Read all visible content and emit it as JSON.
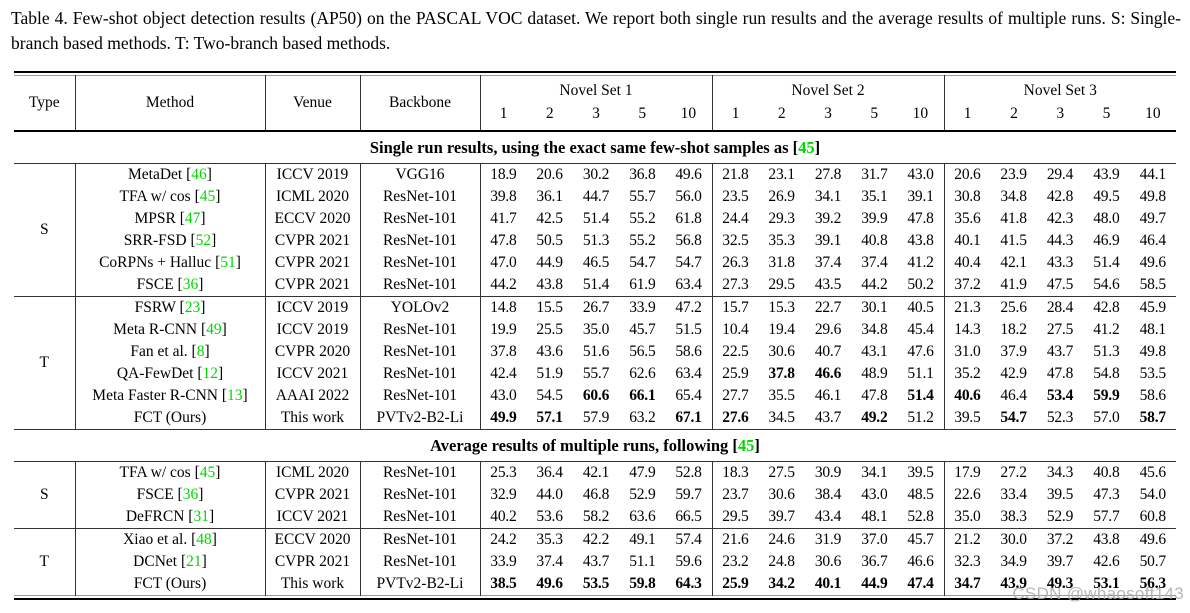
{
  "caption": "Table 4. Few-shot object detection results (AP50) on the PASCAL VOC dataset. We report both single run results and the average results of multiple runs. S: Single-branch based methods. T: Two-branch based methods.",
  "colors": {
    "citation_green": "#00d900"
  },
  "header": {
    "type": "Type",
    "method": "Method",
    "venue": "Venue",
    "backbone": "Backbone",
    "groups": [
      {
        "label": "Novel Set 1"
      },
      {
        "label": "Novel Set 2"
      },
      {
        "label": "Novel Set 3"
      }
    ],
    "shots": [
      "1",
      "2",
      "3",
      "5",
      "10"
    ]
  },
  "sections": [
    {
      "band": {
        "prefix": "Single run results, using the exact same few-shot samples as ",
        "cite": "45"
      },
      "groups": [
        {
          "type": "S",
          "rows": [
            {
              "method": "MetaDet",
              "cite": "46",
              "venue": "ICCV 2019",
              "backbone": "VGG16",
              "values": [
                "18.9",
                "20.6",
                "30.2",
                "36.8",
                "49.6",
                "21.8",
                "23.1",
                "27.8",
                "31.7",
                "43.0",
                "20.6",
                "23.9",
                "29.4",
                "43.9",
                "44.1"
              ],
              "bold": []
            },
            {
              "method": "TFA w/ cos",
              "cite": "45",
              "venue": "ICML 2020",
              "backbone": "ResNet-101",
              "values": [
                "39.8",
                "36.1",
                "44.7",
                "55.7",
                "56.0",
                "23.5",
                "26.9",
                "34.1",
                "35.1",
                "39.1",
                "30.8",
                "34.8",
                "42.8",
                "49.5",
                "49.8"
              ],
              "bold": []
            },
            {
              "method": "MPSR",
              "cite": "47",
              "venue": "ECCV 2020",
              "backbone": "ResNet-101",
              "values": [
                "41.7",
                "42.5",
                "51.4",
                "55.2",
                "61.8",
                "24.4",
                "29.3",
                "39.2",
                "39.9",
                "47.8",
                "35.6",
                "41.8",
                "42.3",
                "48.0",
                "49.7"
              ],
              "bold": []
            },
            {
              "method": "SRR-FSD",
              "cite": "52",
              "venue": "CVPR 2021",
              "backbone": "ResNet-101",
              "values": [
                "47.8",
                "50.5",
                "51.3",
                "55.2",
                "56.8",
                "32.5",
                "35.3",
                "39.1",
                "40.8",
                "43.8",
                "40.1",
                "41.5",
                "44.3",
                "46.9",
                "46.4"
              ],
              "bold": []
            },
            {
              "method": "CoRPNs + Halluc",
              "cite": "51",
              "venue": "CVPR 2021",
              "backbone": "ResNet-101",
              "values": [
                "47.0",
                "44.9",
                "46.5",
                "54.7",
                "54.7",
                "26.3",
                "31.8",
                "37.4",
                "37.4",
                "41.2",
                "40.4",
                "42.1",
                "43.3",
                "51.4",
                "49.6"
              ],
              "bold": []
            },
            {
              "method": "FSCE",
              "cite": "36",
              "venue": "CVPR 2021",
              "backbone": "ResNet-101",
              "values": [
                "44.2",
                "43.8",
                "51.4",
                "61.9",
                "63.4",
                "27.3",
                "29.5",
                "43.5",
                "44.2",
                "50.2",
                "37.2",
                "41.9",
                "47.5",
                "54.6",
                "58.5"
              ],
              "bold": []
            }
          ]
        },
        {
          "type": "T",
          "rows": [
            {
              "method": "FSRW",
              "cite": "23",
              "venue": "ICCV 2019",
              "backbone": "YOLOv2",
              "values": [
                "14.8",
                "15.5",
                "26.7",
                "33.9",
                "47.2",
                "15.7",
                "15.3",
                "22.7",
                "30.1",
                "40.5",
                "21.3",
                "25.6",
                "28.4",
                "42.8",
                "45.9"
              ],
              "bold": []
            },
            {
              "method": "Meta R-CNN",
              "cite": "49",
              "venue": "ICCV 2019",
              "backbone": "ResNet-101",
              "values": [
                "19.9",
                "25.5",
                "35.0",
                "45.7",
                "51.5",
                "10.4",
                "19.4",
                "29.6",
                "34.8",
                "45.4",
                "14.3",
                "18.2",
                "27.5",
                "41.2",
                "48.1"
              ],
              "bold": []
            },
            {
              "method": "Fan et al.",
              "cite": "8",
              "venue": "CVPR 2020",
              "backbone": "ResNet-101",
              "values": [
                "37.8",
                "43.6",
                "51.6",
                "56.5",
                "58.6",
                "22.5",
                "30.6",
                "40.7",
                "43.1",
                "47.6",
                "31.0",
                "37.9",
                "43.7",
                "51.3",
                "49.8"
              ],
              "bold": []
            },
            {
              "method": "QA-FewDet",
              "cite": "12",
              "venue": "ICCV 2021",
              "backbone": "ResNet-101",
              "values": [
                "42.4",
                "51.9",
                "55.7",
                "62.6",
                "63.4",
                "25.9",
                "37.8",
                "46.6",
                "48.9",
                "51.1",
                "35.2",
                "42.9",
                "47.8",
                "54.8",
                "53.5"
              ],
              "bold": [
                6,
                7
              ]
            },
            {
              "method": "Meta Faster R-CNN",
              "cite": "13",
              "venue": "AAAI 2022",
              "backbone": "ResNet-101",
              "values": [
                "43.0",
                "54.5",
                "60.6",
                "66.1",
                "65.4",
                "27.7",
                "35.5",
                "46.1",
                "47.8",
                "51.4",
                "40.6",
                "46.4",
                "53.4",
                "59.9",
                "58.6"
              ],
              "bold": [
                2,
                3,
                9,
                10,
                12,
                13
              ]
            },
            {
              "method": "FCT (Ours)",
              "cite": null,
              "venue": "This work",
              "backbone": "PVTv2-B2-Li",
              "values": [
                "49.9",
                "57.1",
                "57.9",
                "63.2",
                "67.1",
                "27.6",
                "34.5",
                "43.7",
                "49.2",
                "51.2",
                "39.5",
                "54.7",
                "52.3",
                "57.0",
                "58.7"
              ],
              "bold": [
                0,
                1,
                4,
                5,
                8,
                11,
                14
              ]
            }
          ]
        }
      ]
    },
    {
      "band": {
        "prefix": "Average results of multiple runs, following ",
        "cite": "45"
      },
      "groups": [
        {
          "type": "S",
          "rows": [
            {
              "method": "TFA w/ cos",
              "cite": "45",
              "venue": "ICML 2020",
              "backbone": "ResNet-101",
              "values": [
                "25.3",
                "36.4",
                "42.1",
                "47.9",
                "52.8",
                "18.3",
                "27.5",
                "30.9",
                "34.1",
                "39.5",
                "17.9",
                "27.2",
                "34.3",
                "40.8",
                "45.6"
              ],
              "bold": []
            },
            {
              "method": "FSCE",
              "cite": "36",
              "venue": "CVPR 2021",
              "backbone": "ResNet-101",
              "values": [
                "32.9",
                "44.0",
                "46.8",
                "52.9",
                "59.7",
                "23.7",
                "30.6",
                "38.4",
                "43.0",
                "48.5",
                "22.6",
                "33.4",
                "39.5",
                "47.3",
                "54.0"
              ],
              "bold": []
            },
            {
              "method": "DeFRCN",
              "cite": "31",
              "venue": "ICCV 2021",
              "backbone": "ResNet-101",
              "values": [
                "40.2",
                "53.6",
                "58.2",
                "63.6",
                "66.5",
                "29.5",
                "39.7",
                "43.4",
                "48.1",
                "52.8",
                "35.0",
                "38.3",
                "52.9",
                "57.7",
                "60.8"
              ],
              "bold": []
            }
          ]
        },
        {
          "type": "T",
          "rows": [
            {
              "method": "Xiao et al.",
              "cite": "48",
              "venue": "ECCV 2020",
              "backbone": "ResNet-101",
              "values": [
                "24.2",
                "35.3",
                "42.2",
                "49.1",
                "57.4",
                "21.6",
                "24.6",
                "31.9",
                "37.0",
                "45.7",
                "21.2",
                "30.0",
                "37.2",
                "43.8",
                "49.6"
              ],
              "bold": []
            },
            {
              "method": "DCNet",
              "cite": "21",
              "venue": "CVPR 2021",
              "backbone": "ResNet-101",
              "values": [
                "33.9",
                "37.4",
                "43.7",
                "51.1",
                "59.6",
                "23.2",
                "24.8",
                "30.6",
                "36.7",
                "46.6",
                "32.3",
                "34.9",
                "39.7",
                "42.6",
                "50.7"
              ],
              "bold": []
            },
            {
              "method": "FCT (Ours)",
              "cite": null,
              "venue": "This work",
              "backbone": "PVTv2-B2-Li",
              "values": [
                "38.5",
                "49.6",
                "53.5",
                "59.8",
                "64.3",
                "25.9",
                "34.2",
                "40.1",
                "44.9",
                "47.4",
                "34.7",
                "43.9",
                "49.3",
                "53.1",
                "56.3"
              ],
              "bold": [
                0,
                1,
                2,
                3,
                4,
                5,
                6,
                7,
                8,
                9,
                10,
                11,
                12,
                13,
                14
              ]
            }
          ]
        }
      ]
    }
  ],
  "watermark": "CSDN @whaosoft143"
}
